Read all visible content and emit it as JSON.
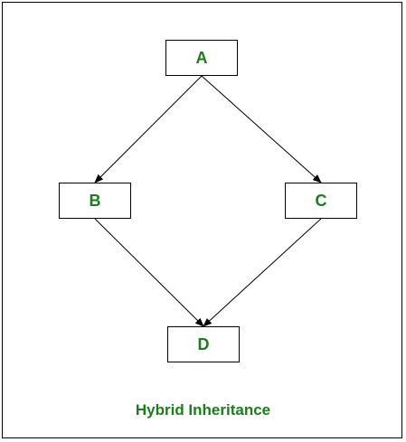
{
  "diagram": {
    "caption": "Hybrid Inheritance",
    "text_color": "#1e7b1e",
    "nodes": {
      "a": "A",
      "b": "B",
      "c": "C",
      "d": "D"
    },
    "edges": [
      {
        "from": "A",
        "to": "B"
      },
      {
        "from": "A",
        "to": "C"
      },
      {
        "from": "B",
        "to": "D"
      },
      {
        "from": "C",
        "to": "D"
      }
    ]
  }
}
